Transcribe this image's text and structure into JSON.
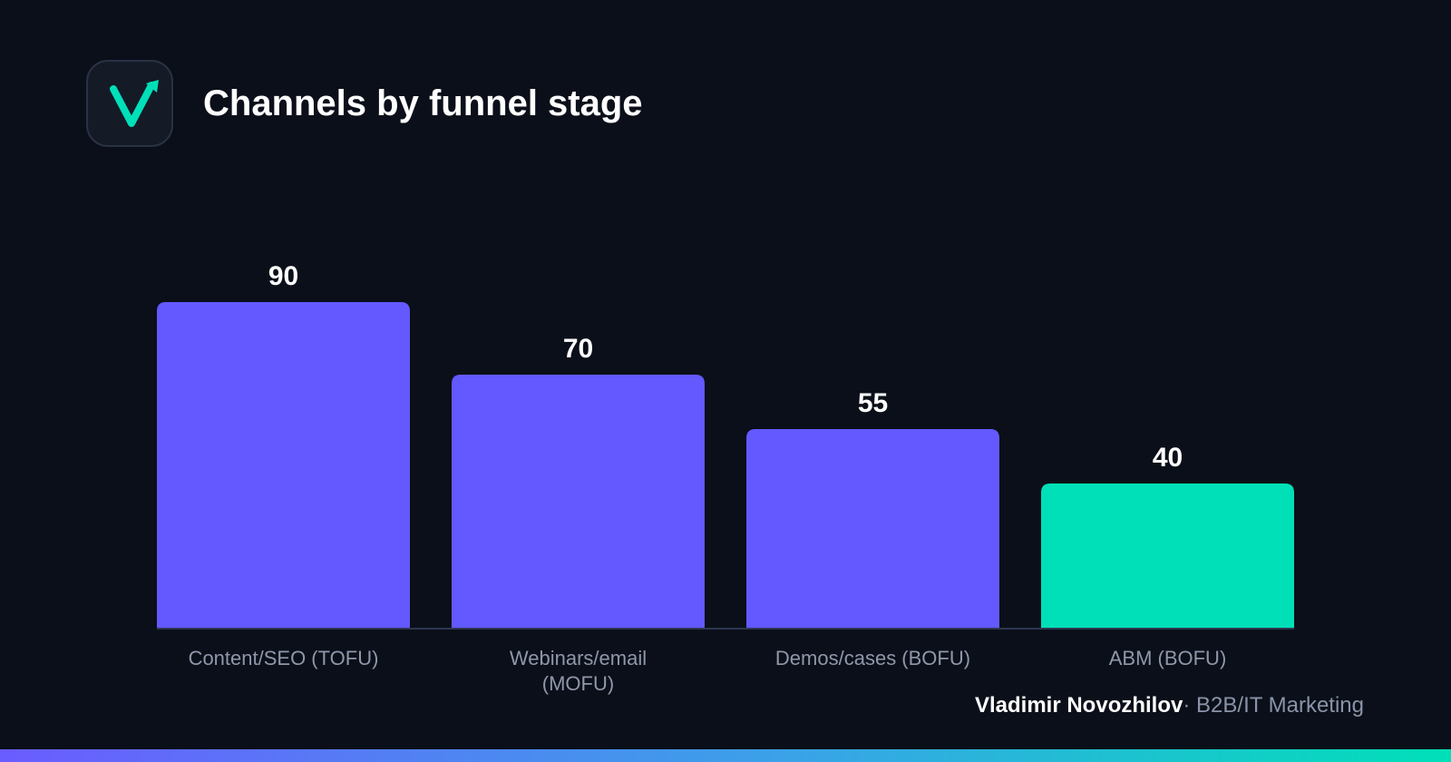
{
  "header": {
    "title": "Channels by funnel stage",
    "logo_icon": "check-arrow-logo-icon"
  },
  "colors": {
    "background": "#0b0f19",
    "bar_primary": "#6359ff",
    "bar_highlight": "#00e0b8",
    "axis": "#2e3650",
    "tick_label": "#8f97aa",
    "value_label": "#ffffff"
  },
  "chart_data": {
    "type": "bar",
    "title": "Channels by funnel stage",
    "categories": [
      [
        "Content/SEO (TOFU)"
      ],
      [
        "Webinars/email",
        "(MOFU)"
      ],
      [
        "Demos/cases (BOFU)"
      ],
      [
        "ABM (BOFU)"
      ]
    ],
    "values": [
      90,
      70,
      55,
      40
    ],
    "highlight_index": 3,
    "xlabel": "",
    "ylabel": "",
    "ylim": [
      0,
      90
    ],
    "grid": false,
    "data_labels": true
  },
  "footer": {
    "author": "Vladimir Novozhilov",
    "separator": "·",
    "tagline": "B2B/IT Marketing"
  }
}
